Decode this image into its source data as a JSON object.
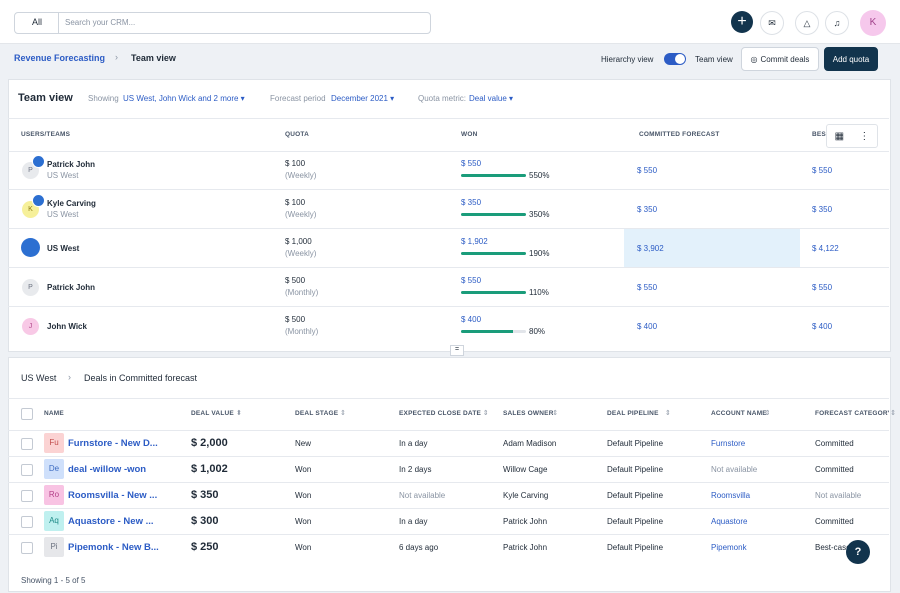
{
  "topbar": {
    "search_scope": "All",
    "search_placeholder": "Search your CRM...",
    "avatar": "K"
  },
  "breadcrumb": {
    "parent": "Revenue Forecasting",
    "current": "Team view"
  },
  "toolbar": {
    "hierarchy_label": "Hierarchy view",
    "team_label": "Team view",
    "commit": "Commit deals",
    "add_quota": "Add quota"
  },
  "team_panel": {
    "title": "Team view",
    "showing_label": "Showing",
    "showing_value": "US West, John Wick and 2 more",
    "period_label": "Forecast period",
    "period_value": "December 2021",
    "metric_label": "Quota metric:",
    "metric_value": "Deal value",
    "columns": [
      "USERS/TEAMS",
      "QUOTA",
      "WON",
      "COMMITTED FORECAST",
      "BEST CASE FORECAST"
    ],
    "rows": [
      {
        "avatar": "P",
        "name": "Patrick John",
        "sub": "US West",
        "quota": "$ 100",
        "period": "(Weekly)",
        "won": "$ 550",
        "won_pct": "550%",
        "committed": "$ 550",
        "best": "$ 550"
      },
      {
        "avatar": "K",
        "name": "Kyle Carving",
        "sub": "US West",
        "quota": "$ 100",
        "period": "(Weekly)",
        "won": "$ 350",
        "won_pct": "350%",
        "committed": "$ 350",
        "best": "$ 350"
      },
      {
        "name": "US West",
        "quota": "$ 1,000",
        "period": "(Weekly)",
        "won": "$ 1,902",
        "won_pct": "190%",
        "committed": "$ 3,902",
        "best": "$ 4,122"
      },
      {
        "avatar": "P",
        "name": "Patrick John",
        "quota": "$ 500",
        "period": "(Monthly)",
        "won": "$ 550",
        "won_pct": "110%",
        "committed": "$ 550",
        "best": "$ 550"
      },
      {
        "avatar": "J",
        "name": "John Wick",
        "quota": "$ 500",
        "period": "(Monthly)",
        "won": "$ 400",
        "won_pct": "80%",
        "committed": "$ 400",
        "best": "$ 400"
      }
    ]
  },
  "deals_panel": {
    "parent": "US West",
    "title": "Deals in Committed forecast",
    "columns": [
      "NAME",
      "DEAL VALUE",
      "DEAL STAGE",
      "EXPECTED CLOSE DATE",
      "SALES OWNER",
      "DEAL PIPELINE",
      "ACCOUNT NAME",
      "FORECAST CATEGORY"
    ],
    "rows": [
      {
        "avatar": "Fu",
        "name": "Furnstore - New D...",
        "value": "$ 2,000",
        "stage": "New",
        "close": "In a day",
        "owner": "Adam Madison",
        "pipeline": "Default Pipeline",
        "account": "Furnstore",
        "category": "Committed"
      },
      {
        "avatar": "De",
        "name": "deal -willow -won",
        "value": "$ 1,002",
        "stage": "Won",
        "close": "In 2 days",
        "owner": "Willow Cage",
        "pipeline": "Default Pipeline",
        "account": "Not available",
        "category": "Committed"
      },
      {
        "avatar": "Ro",
        "name": "Roomsvilla - New ...",
        "value": "$ 350",
        "stage": "Won",
        "close": "Not available",
        "owner": "Kyle Carving",
        "pipeline": "Default Pipeline",
        "account": "Roomsvilla",
        "category": "Not available"
      },
      {
        "avatar": "Aq",
        "name": "Aquastore - New ...",
        "value": "$ 300",
        "stage": "Won",
        "close": "In a day",
        "owner": "Patrick John",
        "pipeline": "Default Pipeline",
        "account": "Aquastore",
        "category": "Committed"
      },
      {
        "avatar": "Pi",
        "name": "Pipemonk - New B...",
        "value": "$ 250",
        "stage": "Won",
        "close": "6 days ago",
        "owner": "Patrick John",
        "pipeline": "Default Pipeline",
        "account": "Pipemonk",
        "category": "Best-case"
      }
    ],
    "footer": "Showing 1 - 5 of 5"
  },
  "help": "?"
}
